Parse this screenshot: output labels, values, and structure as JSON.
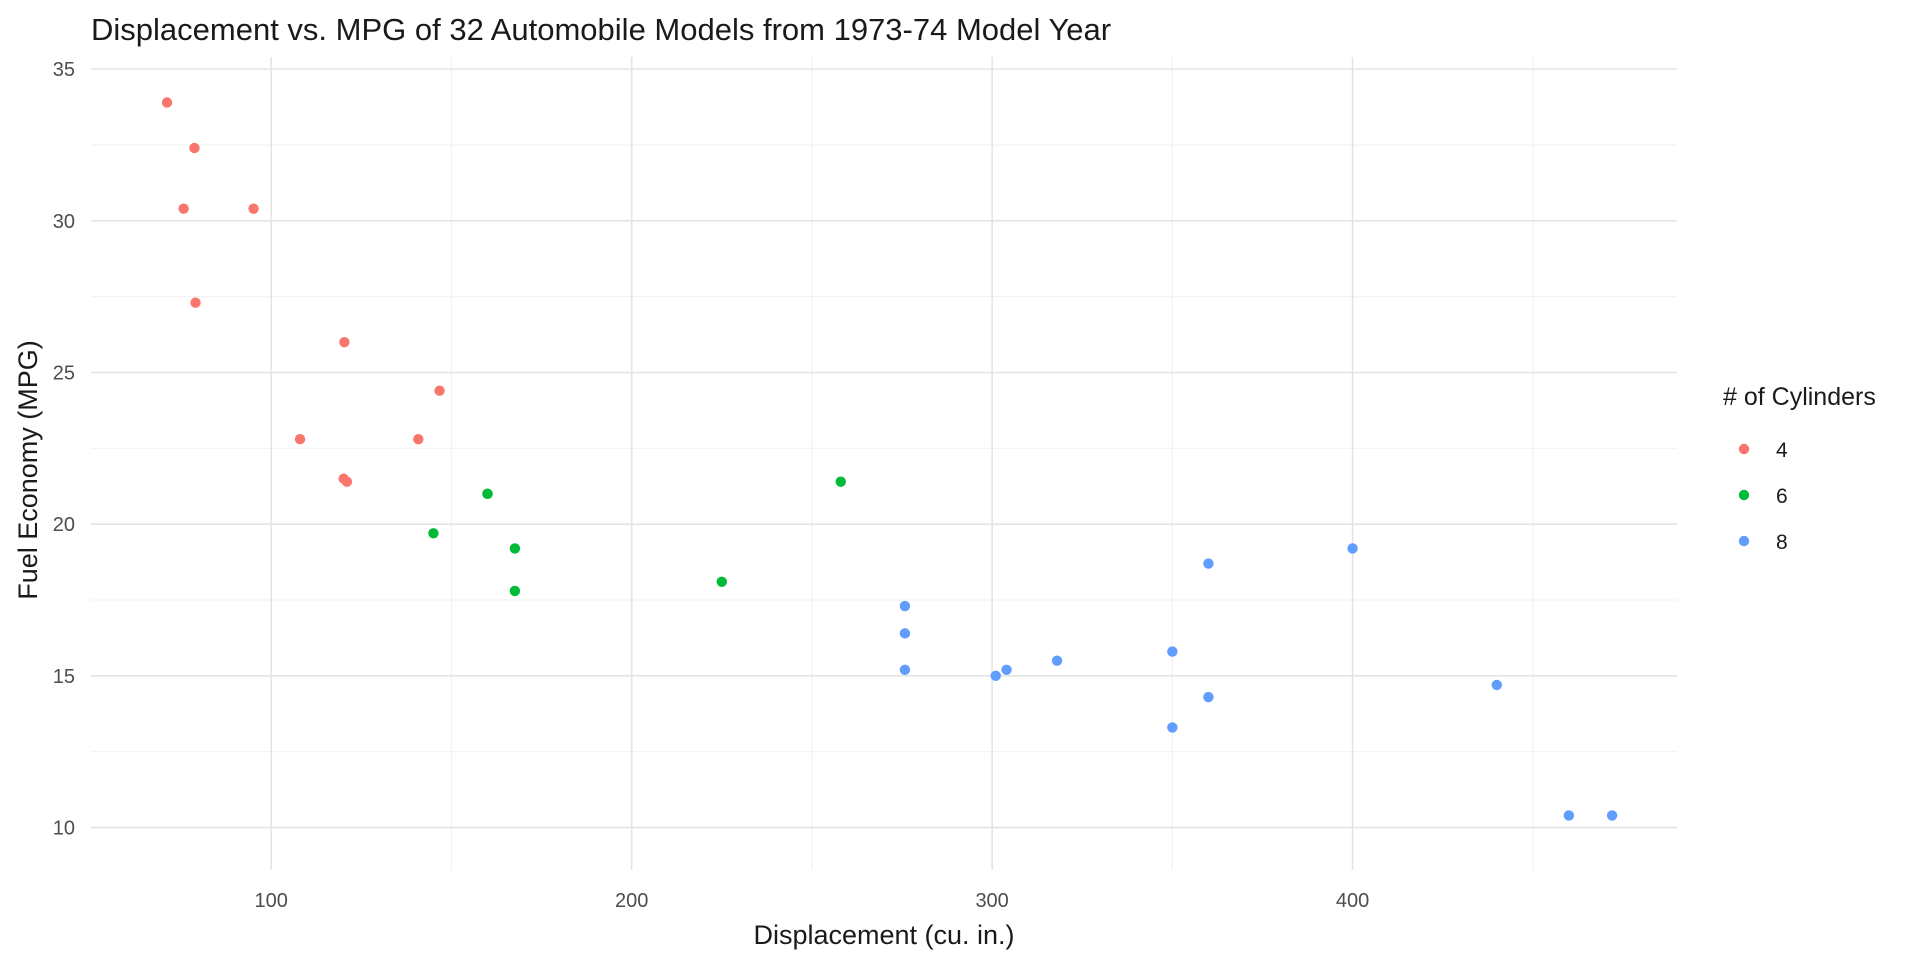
{
  "chart_data": {
    "type": "scatter",
    "title": "Displacement vs. MPG of 32 Automobile Models from 1973-74 Model Year",
    "xlabel": "Displacement (cu. in.)",
    "ylabel": "Fuel Economy (MPG)",
    "xlim": [
      50,
      490
    ],
    "ylim": [
      8.6,
      35.4
    ],
    "xticks": [
      100,
      200,
      300,
      400
    ],
    "yticks": [
      10,
      15,
      20,
      25,
      30,
      35
    ],
    "grid": true,
    "legend": {
      "title": "# of Cylinders",
      "placement": "right"
    },
    "series": [
      {
        "name": "4",
        "color": "#F8766D",
        "points": [
          [
            71.1,
            33.9
          ],
          [
            78.7,
            32.4
          ],
          [
            75.7,
            30.4
          ],
          [
            95.1,
            30.4
          ],
          [
            79.0,
            27.3
          ],
          [
            120.3,
            26.0
          ],
          [
            146.7,
            24.4
          ],
          [
            108.0,
            22.8
          ],
          [
            140.8,
            22.8
          ],
          [
            120.1,
            21.5
          ],
          [
            121.0,
            21.4
          ]
        ]
      },
      {
        "name": "6",
        "color": "#00BA38",
        "points": [
          [
            258.0,
            21.4
          ],
          [
            160.0,
            21.0
          ],
          [
            160.0,
            21.0
          ],
          [
            145.0,
            19.7
          ],
          [
            167.6,
            19.2
          ],
          [
            167.6,
            17.8
          ],
          [
            225.0,
            18.1
          ]
        ]
      },
      {
        "name": "8",
        "color": "#619CFF",
        "points": [
          [
            400.0,
            19.2
          ],
          [
            360.0,
            18.7
          ],
          [
            275.8,
            17.3
          ],
          [
            275.8,
            16.4
          ],
          [
            350.0,
            15.8
          ],
          [
            318.0,
            15.5
          ],
          [
            304.0,
            15.2
          ],
          [
            275.8,
            15.2
          ],
          [
            301.0,
            15.0
          ],
          [
            440.0,
            14.7
          ],
          [
            360.0,
            14.3
          ],
          [
            350.0,
            13.3
          ],
          [
            460.0,
            10.4
          ],
          [
            472.0,
            10.4
          ]
        ]
      }
    ]
  }
}
